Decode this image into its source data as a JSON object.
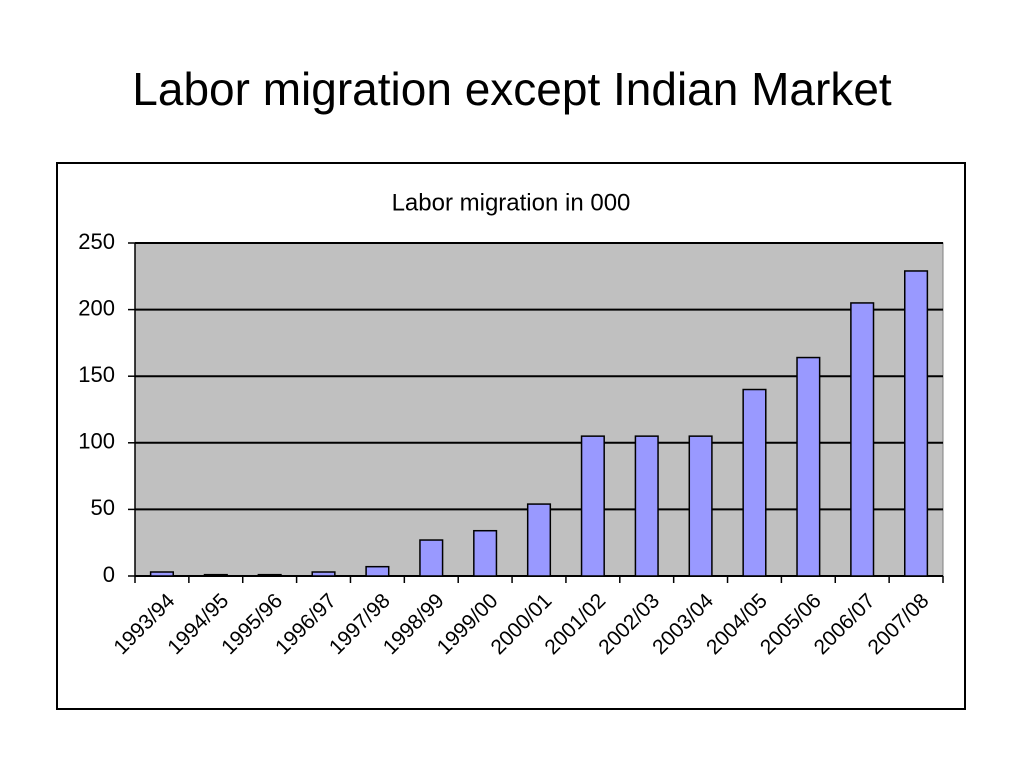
{
  "title": "Labor migration except Indian Market",
  "chart_data": {
    "type": "bar",
    "title": "Labor migration in 000",
    "categories": [
      "1993/94",
      "1994/95",
      "1995/96",
      "1996/97",
      "1997/98",
      "1998/99",
      "1999/00",
      "2000/01",
      "2001/02",
      "2002/03",
      "2003/04",
      "2004/05",
      "2005/06",
      "2006/07",
      "2007/08"
    ],
    "values": [
      3,
      1,
      1,
      3,
      7,
      27,
      34,
      54,
      105,
      105,
      105,
      140,
      164,
      205,
      229
    ],
    "color": "#9999ff",
    "ylim": [
      0,
      250
    ],
    "yticks": [
      0,
      50,
      100,
      150,
      200,
      250
    ],
    "grid": true
  }
}
